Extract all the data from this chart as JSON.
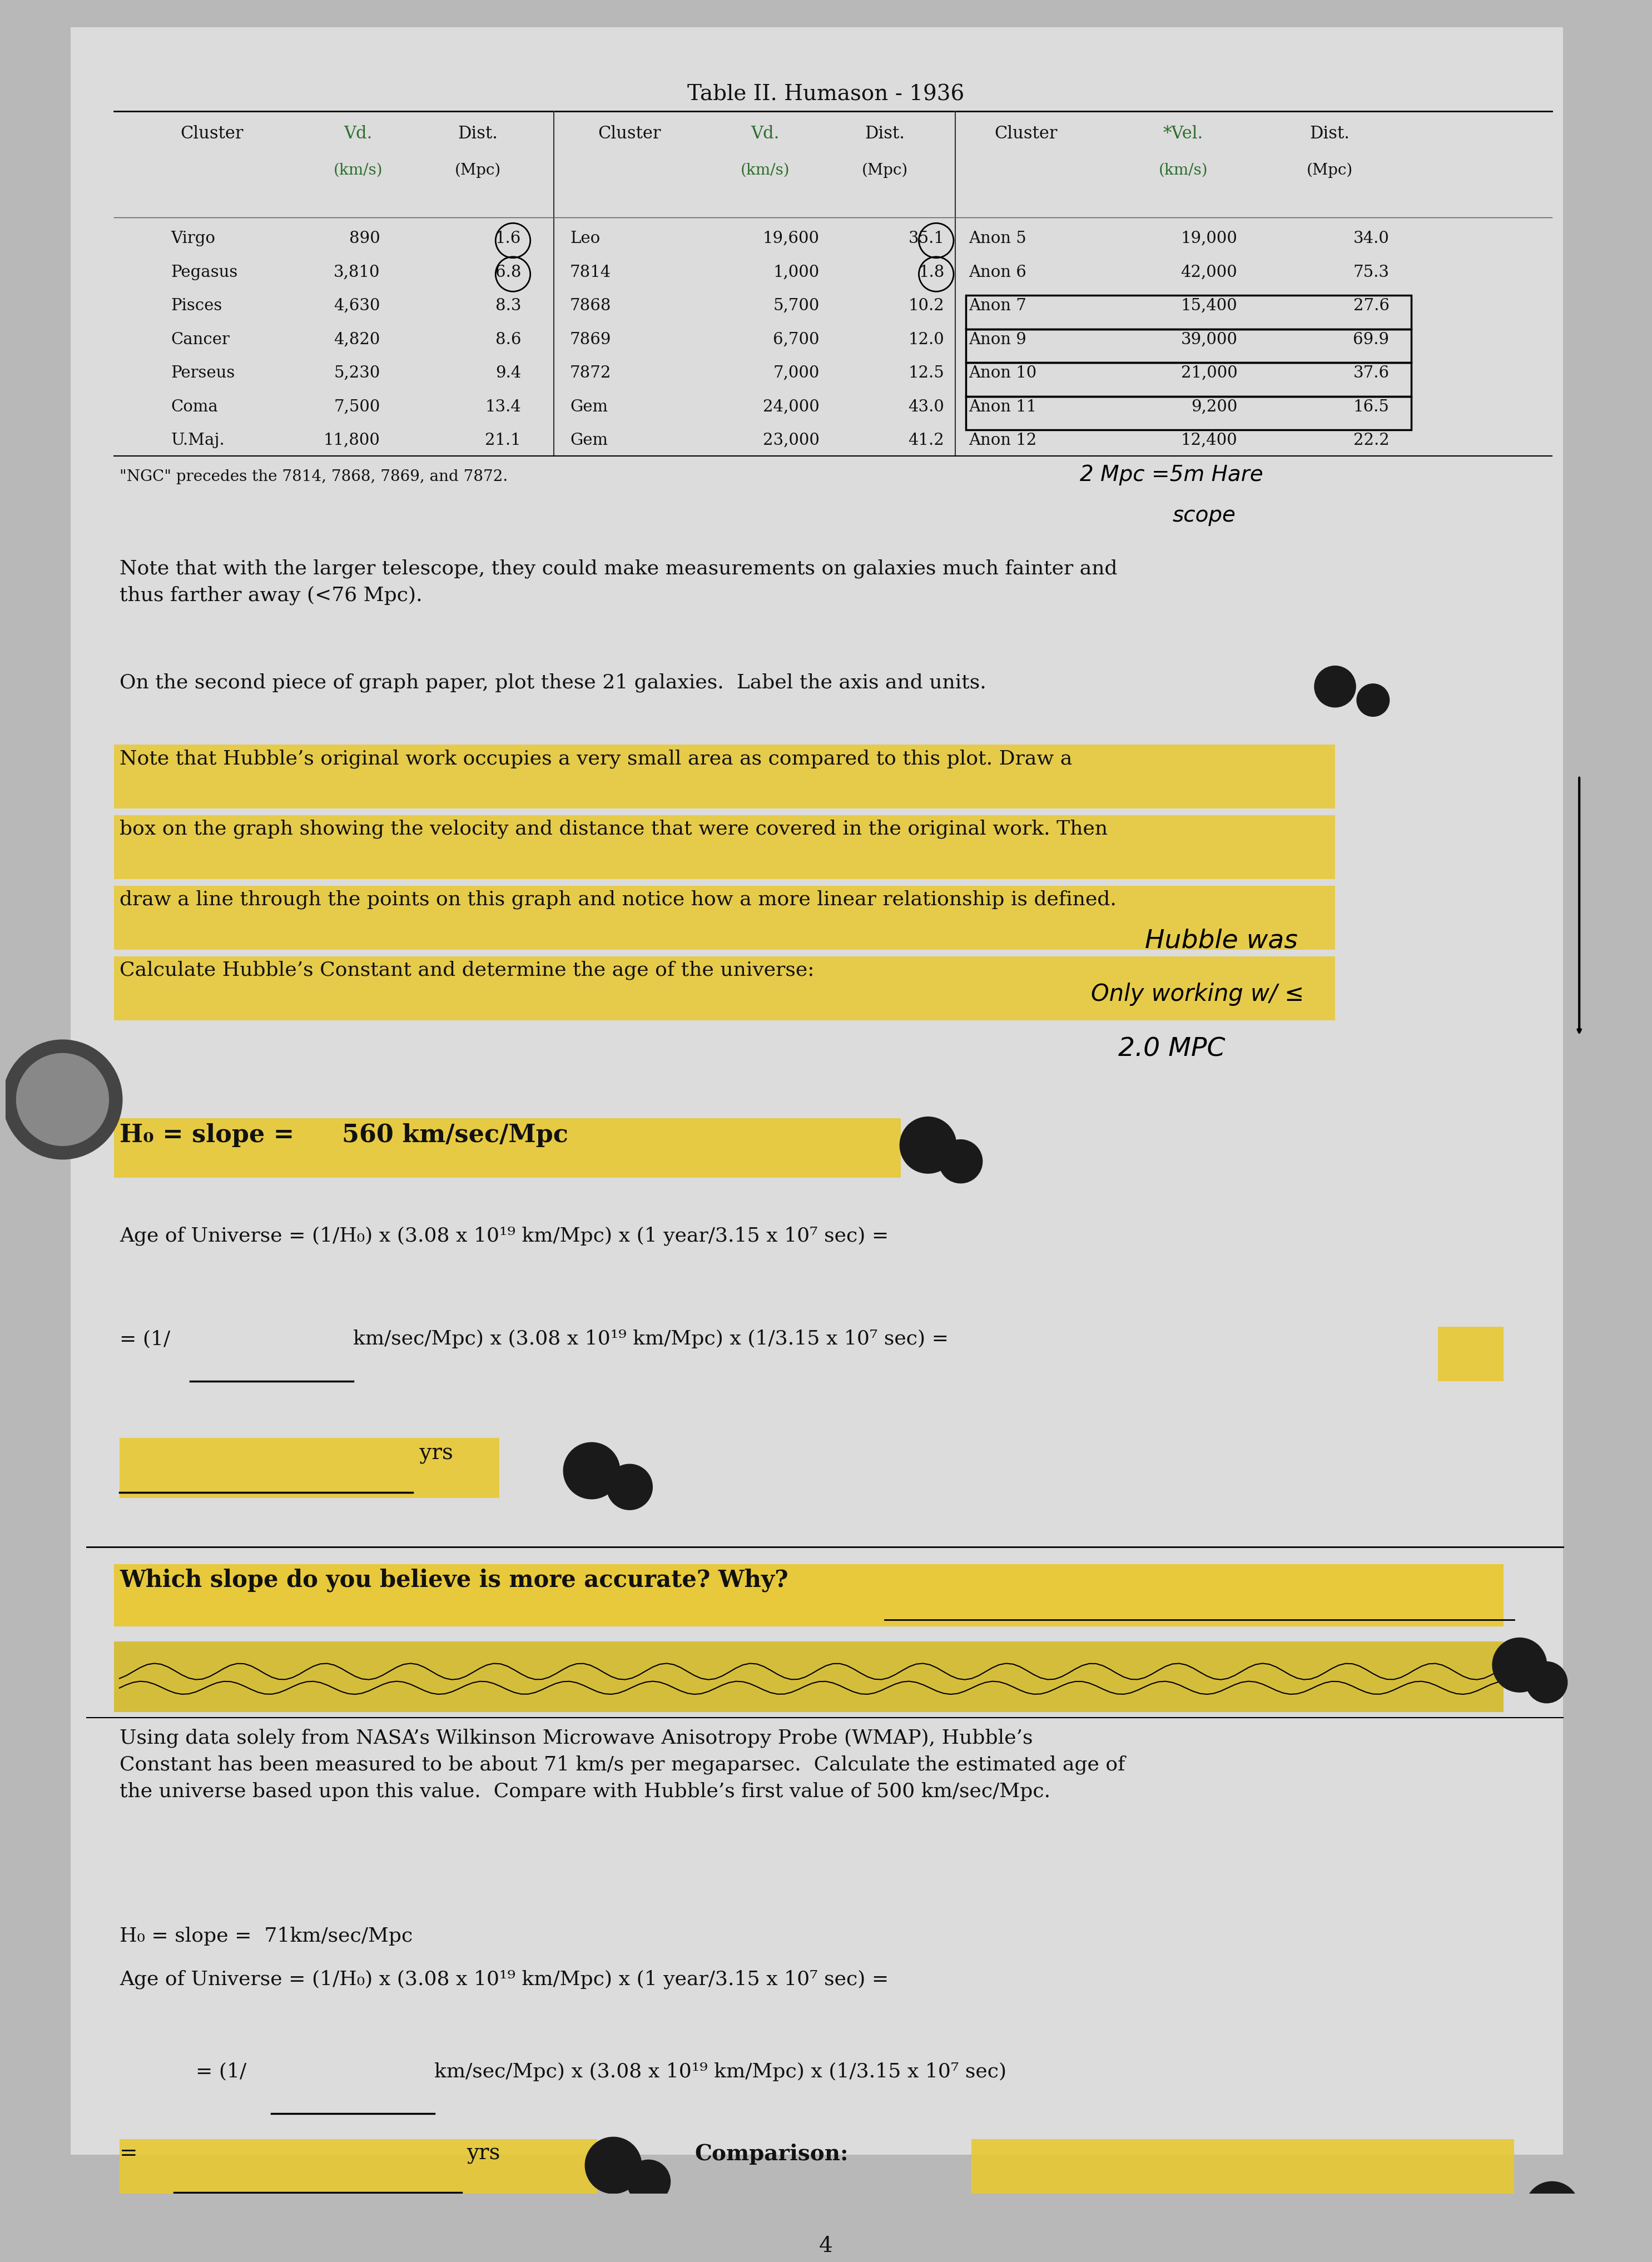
{
  "title": "Table II. Humason - 1936",
  "bg_color": "#b8b8b8",
  "paper_color": "#dcdcdc",
  "table": {
    "col1_rows": [
      [
        "Virgo",
        "890",
        "1.6"
      ],
      [
        "Pegasus",
        "3,810",
        "6.8"
      ],
      [
        "Pisces",
        "4,630",
        "8.3"
      ],
      [
        "Cancer",
        "4,820",
        "8.6"
      ],
      [
        "Perseus",
        "5,230",
        "9.4"
      ],
      [
        "Coma",
        "7,500",
        "13.4"
      ],
      [
        "U.Maj.",
        "11,800",
        "21.1"
      ]
    ],
    "col2_rows": [
      [
        "Leo",
        "19,600",
        "35.1"
      ],
      [
        "7814",
        "1,000",
        "1.8"
      ],
      [
        "7868",
        "5,700",
        "10.2"
      ],
      [
        "7869",
        "6,700",
        "12.0"
      ],
      [
        "7872",
        "7,000",
        "12.5"
      ],
      [
        "Gem",
        "24,000",
        "43.0"
      ],
      [
        "Gem",
        "23,000",
        "41.2"
      ]
    ],
    "col3_rows": [
      [
        "Anon 5",
        "19,000",
        "34.0"
      ],
      [
        "Anon 6",
        "42,000",
        "75.3"
      ],
      [
        "Anon 7",
        "15,400",
        "27.6"
      ],
      [
        "Anon 9",
        "39,000",
        "69.9"
      ],
      [
        "Anon 10",
        "21,000",
        "37.6"
      ],
      [
        "Anon 11",
        "9,200",
        "16.5"
      ],
      [
        "Anon 12",
        "12,400",
        "22.2"
      ]
    ]
  },
  "ngc_note": "\"NGC\" precedes the 7814, 7868, 7869, and 7872.",
  "hw_note1a": "2 Mpc =5m Hare",
  "hw_note1b": "scope",
  "para1": "Note that with the larger telescope, they could make measurements on galaxies much fainter and\nthus farther away (<76 Mpc).",
  "para2": "On the second piece of graph paper, plot these 21 galaxies.  Label the axis and units.",
  "para3_line1": "Note that Hubble’s original work occupies a very small area as compared to this plot. Draw a",
  "para3_line2": "box on the graph showing the velocity and distance that were covered in the original work. Then",
  "para3_line3": "draw a line through the points on this graph and notice how a more linear relationship is defined.",
  "para3_line4": "Calculate Hubble’s Constant and determine the age of the universe:",
  "hw_note2a": "Hubble was",
  "hw_note2b": "Only working w/ ≤",
  "hw_note2c": "2.0 MPC",
  "h0_label": "H₀ = slope = ",
  "h0_value": "560 km/sec/Mpc",
  "age1": "Age of Universe = (1/H₀) x (3.08 x 10¹⁹ km/Mpc) x (1 year/3.15 x 10⁷ sec) =",
  "age2_pre": "= (1/",
  "age2_post": "km/sec/Mpc) x (3.08 x 10¹⁹ km/Mpc) x (1/3.15 x 10⁷ sec) =",
  "which_slope": "Which slope do you believe is more accurate? Why?",
  "wmap": "Using data solely from NASA’s Wilkinson Microwave Anisotropy Probe (WMAP), Hubble’s\nConstant has been measured to be about 71 km/s per megaparsec.  Calculate the estimated age of\nthe universe based upon this value.  Compare with Hubble’s first value of 500 km/sec/Mpc.",
  "h0_2": "H₀ = slope =  71km/sec/Mpc",
  "age3": "Age of Universe = (1/H₀) x (3.08 x 10¹⁹ km/Mpc) x (1 year/3.15 x 10⁷ sec) =",
  "age4_pre": "= (1/",
  "age4_post": "km/sec/Mpc) x (3.08 x 10¹⁹ km/Mpc) x (1/3.15 x 10⁷ sec)",
  "comparison": "Comparison:",
  "page_num": "4",
  "yellow": "#e8c832",
  "yellow2": "#d4b820",
  "black_blob": "#1a1a1a",
  "text_color": "#111111",
  "green_color": "#2d6e2d"
}
